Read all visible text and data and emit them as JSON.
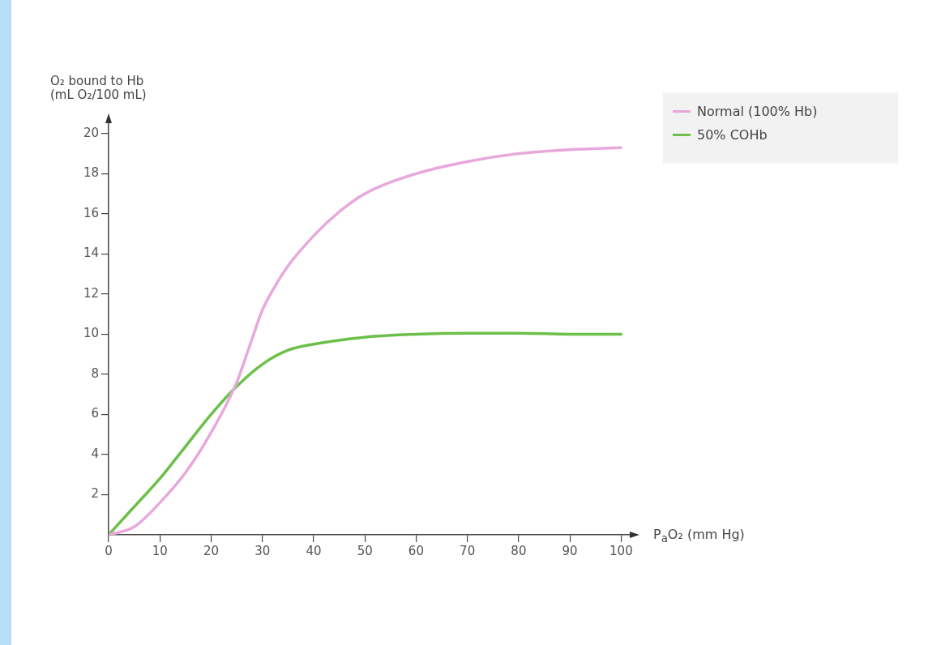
{
  "chart_data": {
    "type": "line",
    "xlabel": "P$_{a}$O₂ (mm Hg)",
    "ylabel": "O₂ bound to Hb (mL O₂/100 mL)",
    "xlim": [
      0,
      102
    ],
    "ylim": [
      0,
      20.6
    ],
    "xticks": [
      0,
      10,
      20,
      30,
      40,
      50,
      60,
      70,
      80,
      90,
      100
    ],
    "yticks": [
      2,
      4,
      6,
      8,
      10,
      12,
      14,
      16,
      18,
      20
    ],
    "grid": false,
    "legend": "top right",
    "marker": "none",
    "line_style": "solid",
    "series": [
      {
        "name": "Normal (100% Hb)",
        "color": "#e8a8dc",
        "x": [
          0,
          5,
          10,
          15,
          20,
          25,
          27.5,
          30,
          32.5,
          35,
          40,
          45,
          50,
          60,
          70,
          80,
          90,
          100
        ],
        "values": [
          0,
          0.4,
          1.6,
          3.1,
          5.1,
          7.6,
          9.4,
          11.2,
          12.4,
          13.4,
          14.9,
          16.1,
          17,
          18,
          18.6,
          19,
          19.2,
          19.3
        ]
      },
      {
        "name": "50% COHb",
        "color": "#6cc04a",
        "x": [
          0,
          5,
          10,
          15,
          20,
          25,
          30,
          35,
          40,
          50,
          60,
          70,
          80,
          90,
          100
        ],
        "values": [
          0,
          1.4,
          2.8,
          4.4,
          6,
          7.4,
          8.5,
          9.2,
          9.5,
          9.85,
          10,
          10.05,
          10.05,
          10,
          10
        ]
      }
    ]
  }
}
